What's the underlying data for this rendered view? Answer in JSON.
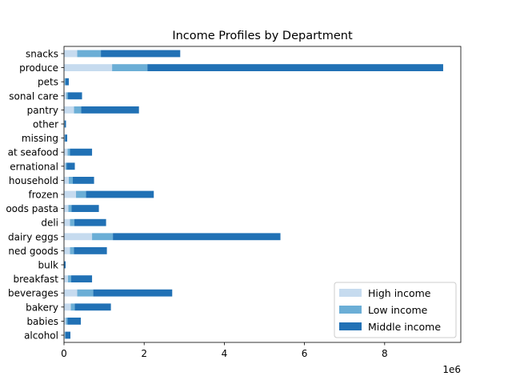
{
  "chart_data": {
    "type": "bar",
    "orientation": "horizontal",
    "stacked": true,
    "title": "Income Profiles by Department",
    "xlabel": "",
    "ylabel": "",
    "x_offset_label": "1e6",
    "x_scale_factor": 1000000,
    "xlim": [
      0,
      9900000
    ],
    "xticks": [
      0,
      2000000,
      4000000,
      6000000,
      8000000
    ],
    "xtick_labels": [
      "0",
      "2",
      "4",
      "6",
      "8"
    ],
    "legend_position": "lower-right",
    "grid": false,
    "categories": [
      "alcohol",
      "babies",
      "bakery",
      "beverages",
      "breakfast",
      "bulk",
      "canned goods",
      "dairy eggs",
      "deli",
      "dry goods pasta",
      "frozen",
      "household",
      "international",
      "meat seafood",
      "missing",
      "other",
      "pantry",
      "personal care",
      "pets",
      "produce",
      "snacks"
    ],
    "category_labels_visible": [
      "alcohol",
      "babies",
      "bakery",
      "beverages",
      "breakfast",
      "bulk",
      "ned goods",
      "dairy eggs",
      "deli",
      "oods pasta",
      "frozen",
      "household",
      "ernational",
      "at seafood",
      "missing",
      "other",
      "pantry",
      "sonal care",
      "pets",
      "produce",
      "snacks"
    ],
    "series": [
      {
        "name": "High income",
        "color": "#c6dbef",
        "values": [
          20000,
          50000,
          170000,
          330000,
          100000,
          5000,
          150000,
          700000,
          150000,
          110000,
          300000,
          120000,
          40000,
          90000,
          15000,
          10000,
          250000,
          60000,
          20000,
          1200000,
          330000
        ]
      },
      {
        "name": "Low income",
        "color": "#6baed6",
        "values": [
          15000,
          40000,
          100000,
          400000,
          80000,
          5000,
          100000,
          520000,
          110000,
          80000,
          250000,
          100000,
          30000,
          60000,
          10000,
          8000,
          180000,
          40000,
          20000,
          880000,
          590000
        ]
      },
      {
        "name": "Middle income",
        "color": "#2171b5",
        "values": [
          125000,
          330000,
          900000,
          1970000,
          520000,
          30000,
          820000,
          4180000,
          790000,
          680000,
          1690000,
          530000,
          200000,
          550000,
          55000,
          32000,
          1440000,
          350000,
          80000,
          7380000,
          1980000
        ]
      }
    ]
  }
}
